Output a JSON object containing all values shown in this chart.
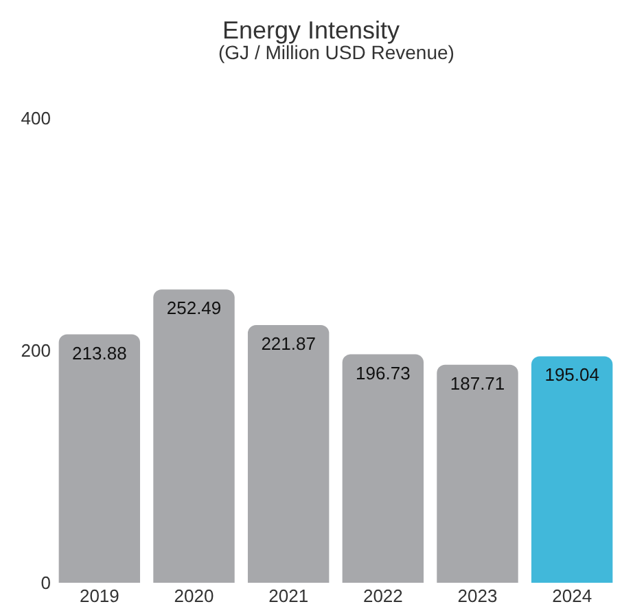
{
  "chart_data": {
    "type": "bar",
    "title": "Energy Intensity",
    "subtitle": "(GJ / Million USD Revenue)",
    "categories": [
      "2019",
      "2020",
      "2021",
      "2022",
      "2023",
      "2024"
    ],
    "values": [
      213.88,
      252.49,
      221.87,
      196.73,
      187.71,
      195.04
    ],
    "colors": [
      "#a7a8ab",
      "#a7a8ab",
      "#a7a8ab",
      "#a7a8ab",
      "#a7a8ab",
      "#41b8da"
    ],
    "ylim": [
      0,
      400
    ],
    "yticks": [
      0,
      200,
      400
    ],
    "data_labels": true,
    "legend": false
  }
}
